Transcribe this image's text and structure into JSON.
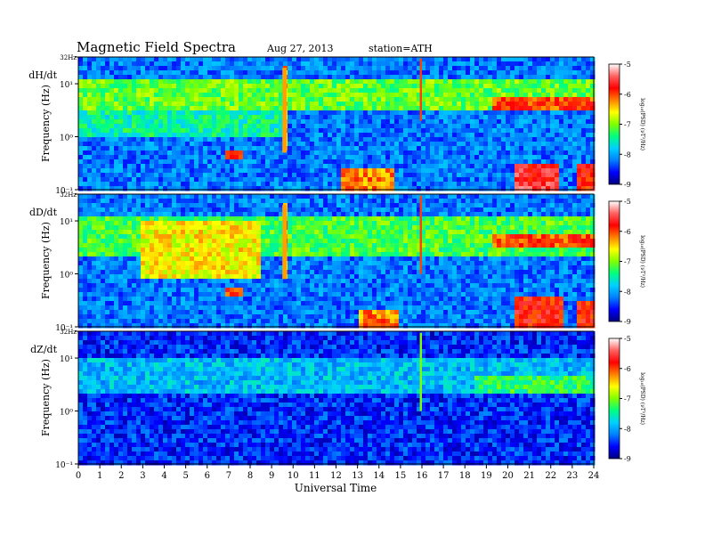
{
  "header": {
    "title": "Magnetic  Field  Spectra",
    "date": "Aug 27, 2013",
    "station": "station=ATH"
  },
  "colorbar": {
    "label": "log₁₀(PSD) (νT²/Hz)",
    "ticks": [
      "-5",
      "-6",
      "-7",
      "-8",
      "-9"
    ],
    "range": [
      -9,
      -5
    ],
    "colors": [
      "#000080",
      "#0000ff",
      "#0080ff",
      "#00d0ff",
      "#00ff80",
      "#80ff00",
      "#ffff00",
      "#ff8000",
      "#ff0000",
      "#ff6060",
      "#ffffff"
    ]
  },
  "chart_data": [
    {
      "type": "heatmap",
      "panel": "dH/dt",
      "ylabel": "Frequency (Hz)",
      "xlabel": "",
      "y_scale": "log",
      "y_range_hz": [
        0.1,
        32
      ],
      "y_ticks": [
        {
          "value": 0.1,
          "label": "10⁻¹"
        },
        {
          "value": 1,
          "label": "10⁰"
        },
        {
          "value": 10,
          "label": "10¹"
        },
        {
          "value": 32,
          "label": "32Hz"
        }
      ],
      "x_range": [
        0,
        24
      ],
      "background_level": -8.2,
      "features": [
        {
          "t_start": 0,
          "t_end": 24,
          "f_low": 22,
          "f_high": 32,
          "level": -8.6
        },
        {
          "t_start": 0,
          "t_end": 24,
          "f_low": 3,
          "f_high": 12,
          "level": -7.1
        },
        {
          "t_start": 0,
          "t_end": 9.6,
          "f_low": 1,
          "f_high": 3,
          "level": -7.5
        },
        {
          "t_start": 6.8,
          "t_end": 7.6,
          "f_low": 0.35,
          "f_high": 0.6,
          "level": -6.0
        },
        {
          "t_start": 12.3,
          "t_end": 14.8,
          "f_low": 0.1,
          "f_high": 0.25,
          "level": -6.2
        },
        {
          "t_start": 19.2,
          "t_end": 24,
          "f_low": 3,
          "f_high": 6,
          "level": -6.0
        },
        {
          "t_start": 20.3,
          "t_end": 22.3,
          "f_low": 0.1,
          "f_high": 0.3,
          "level": -5.6
        },
        {
          "t_start": 23.2,
          "t_end": 24,
          "f_low": 0.1,
          "f_high": 0.3,
          "level": -5.8
        },
        {
          "t_start": 9.5,
          "t_end": 9.7,
          "f_low": 0.5,
          "f_high": 20,
          "level": -6.3
        },
        {
          "t_start": 15.9,
          "t_end": 16.0,
          "f_low": 2,
          "f_high": 30,
          "level": -6.0
        }
      ]
    },
    {
      "type": "heatmap",
      "panel": "dD/dt",
      "ylabel": "Frequency (Hz)",
      "xlabel": "",
      "y_scale": "log",
      "y_range_hz": [
        0.1,
        32
      ],
      "y_ticks": [
        {
          "value": 0.1,
          "label": "10⁻¹"
        },
        {
          "value": 1,
          "label": "10⁰"
        },
        {
          "value": 10,
          "label": "10¹"
        },
        {
          "value": 32,
          "label": "32Hz"
        }
      ],
      "x_range": [
        0,
        24
      ],
      "background_level": -8.2,
      "features": [
        {
          "t_start": 0,
          "t_end": 24,
          "f_low": 22,
          "f_high": 32,
          "level": -8.6
        },
        {
          "t_start": 0,
          "t_end": 24,
          "f_low": 2,
          "f_high": 12,
          "level": -7.2
        },
        {
          "t_start": 2.8,
          "t_end": 8.5,
          "f_low": 0.8,
          "f_high": 10,
          "level": -6.6
        },
        {
          "t_start": 6.8,
          "t_end": 7.6,
          "f_low": 0.35,
          "f_high": 0.6,
          "level": -6.0
        },
        {
          "t_start": 13.0,
          "t_end": 15.0,
          "f_low": 0.1,
          "f_high": 0.22,
          "level": -6.2
        },
        {
          "t_start": 19.2,
          "t_end": 24,
          "f_low": 3,
          "f_high": 6,
          "level": -6.0
        },
        {
          "t_start": 20.3,
          "t_end": 22.5,
          "f_low": 0.1,
          "f_high": 0.35,
          "level": -5.8
        },
        {
          "t_start": 23.3,
          "t_end": 24,
          "f_low": 0.1,
          "f_high": 0.3,
          "level": -5.8
        },
        {
          "t_start": 9.5,
          "t_end": 9.7,
          "f_low": 0.8,
          "f_high": 20,
          "level": -6.3
        },
        {
          "t_start": 15.9,
          "t_end": 16.0,
          "f_low": 1,
          "f_high": 30,
          "level": -6.0
        }
      ]
    },
    {
      "type": "heatmap",
      "panel": "dZ/dt",
      "ylabel": "Frequency (Hz)",
      "xlabel": "Universal  Time",
      "y_scale": "log",
      "y_range_hz": [
        0.1,
        32
      ],
      "y_ticks": [
        {
          "value": 0.1,
          "label": "10⁻¹"
        },
        {
          "value": 1,
          "label": "10⁰"
        },
        {
          "value": 10,
          "label": "10¹"
        },
        {
          "value": 32,
          "label": "32Hz"
        }
      ],
      "x_range": [
        0,
        24
      ],
      "x_ticks": [
        "0",
        "1",
        "2",
        "3",
        "4",
        "5",
        "6",
        "7",
        "8",
        "9",
        "10",
        "11",
        "12",
        "13",
        "14",
        "15",
        "16",
        "17",
        "18",
        "19",
        "20",
        "21",
        "22",
        "23",
        "24"
      ],
      "background_level": -8.5,
      "features": [
        {
          "t_start": 0,
          "t_end": 24,
          "f_low": 18,
          "f_high": 32,
          "level": -9.0
        },
        {
          "t_start": 0,
          "t_end": 24,
          "f_low": 2,
          "f_high": 10,
          "level": -7.9
        },
        {
          "t_start": 18.5,
          "t_end": 24,
          "f_low": 2.2,
          "f_high": 5,
          "level": -7.3
        },
        {
          "t_start": 15.9,
          "t_end": 16.0,
          "f_low": 1,
          "f_high": 30,
          "level": -7.0
        }
      ]
    }
  ]
}
